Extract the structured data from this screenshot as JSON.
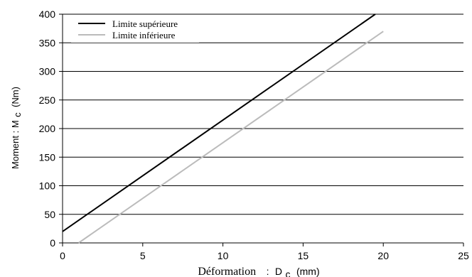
{
  "chart_data": {
    "type": "line",
    "title": "",
    "xlabel": {
      "main": "Déformation",
      "separator": ":",
      "symbol": "D",
      "subscript": "c",
      "unit": "(mm)"
    },
    "ylabel": {
      "main": "Moment : M",
      "subscript": "c",
      "unit": "(Nm)"
    },
    "xlim": [
      0,
      25
    ],
    "ylim": [
      0,
      400
    ],
    "x_ticks": [
      0,
      5,
      10,
      15,
      20,
      25
    ],
    "y_ticks": [
      0,
      50,
      100,
      150,
      200,
      250,
      300,
      350,
      400
    ],
    "grid": "horizontal",
    "legend_position": "top-left",
    "series": [
      {
        "name": "Limite supérieure",
        "color": "#000000",
        "x": [
          0,
          19.5
        ],
        "y": [
          20,
          400
        ]
      },
      {
        "name": "Limite inférieure",
        "color": "#bbbbbb",
        "x": [
          1,
          20
        ],
        "y": [
          0,
          370
        ]
      }
    ]
  }
}
